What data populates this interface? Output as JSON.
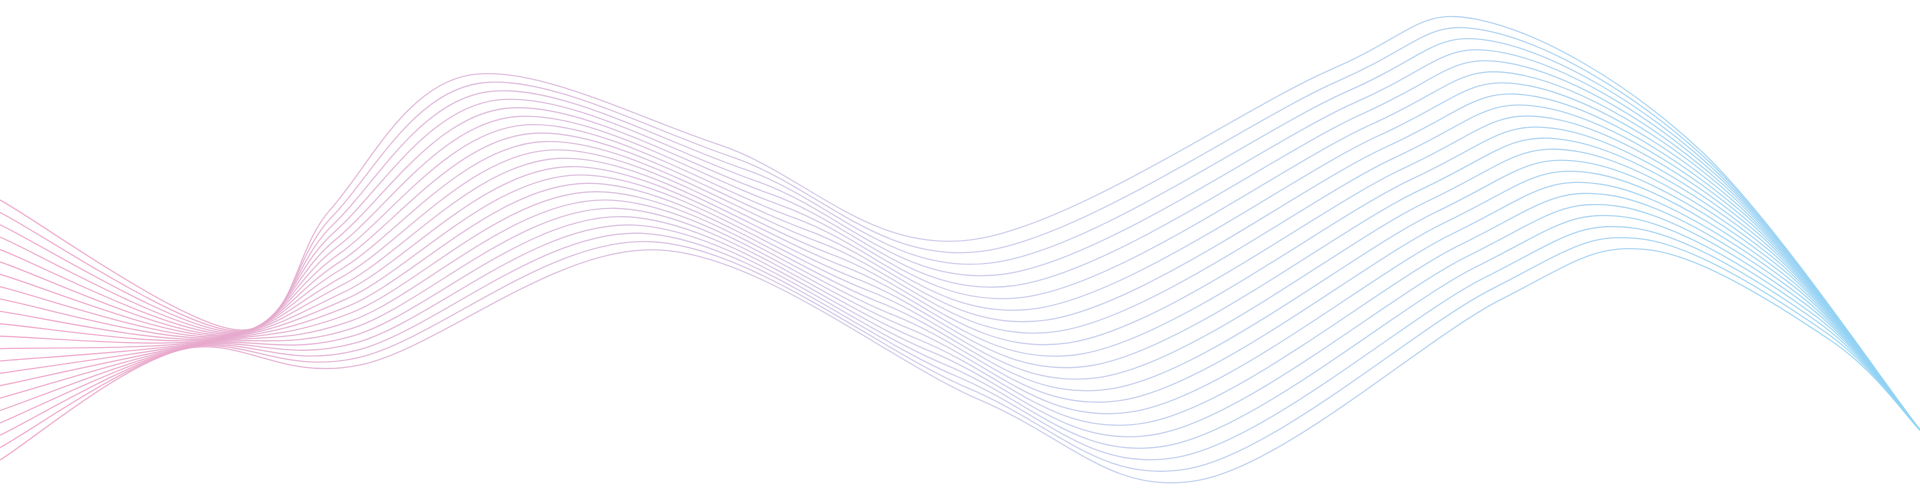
{
  "artwork": {
    "name": "wave-lines",
    "line_count": 22,
    "colors": {
      "start": "#ef9fc4",
      "middle": "#c9c8ea",
      "end": "#8fd3f4"
    }
  }
}
